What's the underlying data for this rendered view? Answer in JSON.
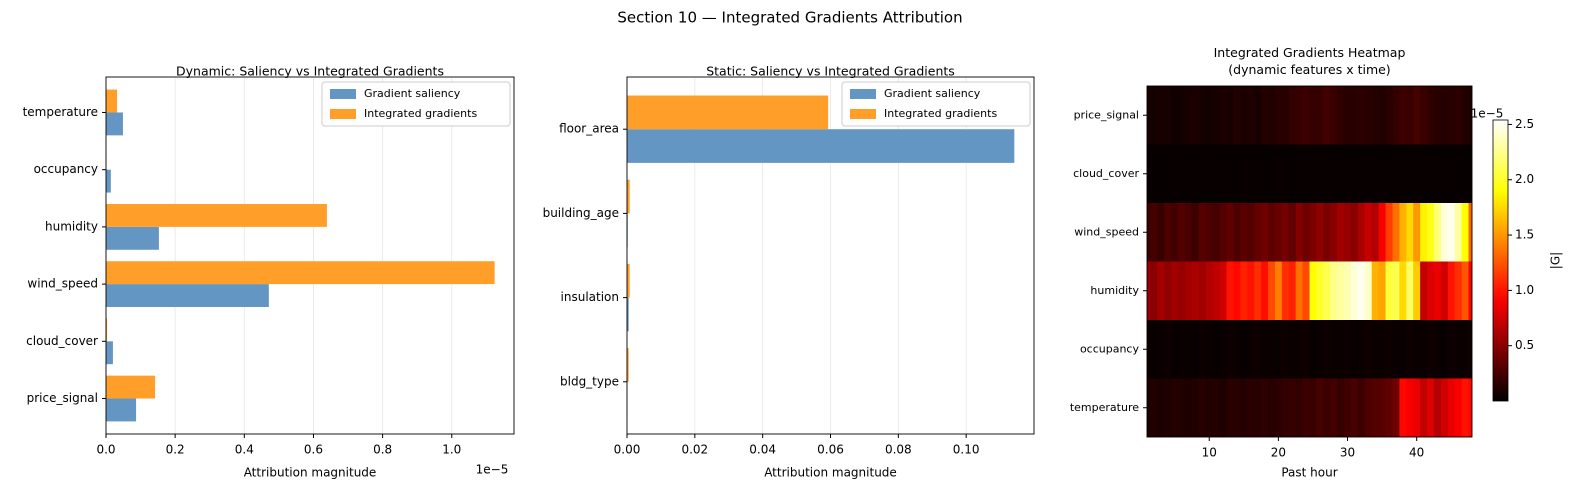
{
  "title": "Section 10 — Integrated Gradients Attribution",
  "chart_data": [
    {
      "type": "hbar",
      "title": "Dynamic: Saliency vs Integrated Gradients",
      "xlabel": "Attribution magnitude",
      "offset_text": "1e−5",
      "categories": [
        "price_signal",
        "cloud_cover",
        "wind_speed",
        "humidity",
        "occupancy",
        "temperature"
      ],
      "series": [
        {
          "name": "Gradient saliency",
          "color": "#6496c3",
          "values": [
            0.087,
            0.02,
            0.471,
            0.153,
            0.014,
            0.049
          ]
        },
        {
          "name": "Integrated gradients",
          "color": "#ff9f2a",
          "values": [
            0.142,
            0.003,
            1.124,
            0.639,
            0.001,
            0.032
          ]
        }
      ],
      "xlim": [
        0,
        1.18
      ],
      "xticks": [
        {
          "value": 0,
          "label": "0.0"
        },
        0.2,
        0.4,
        0.6,
        0.8,
        {
          "value": 1,
          "label": "1.0"
        }
      ],
      "grid": true,
      "legend": "upper right"
    },
    {
      "type": "hbar",
      "title": "Static: Saliency vs Integrated Gradients",
      "xlabel": "Attribution magnitude",
      "categories": [
        "bldg_type",
        "insulation",
        "building_age",
        "floor_area"
      ],
      "series": [
        {
          "name": "Gradient saliency",
          "color": "#6496c3",
          "values": [
            0.0001,
            0.0005,
            0.0002,
            0.1142
          ]
        },
        {
          "name": "Integrated gradients",
          "color": "#ff9f2a",
          "values": [
            0.0005,
            0.0008,
            0.0008,
            0.0593
          ]
        }
      ],
      "xlim": [
        0,
        0.12
      ],
      "xticks": [
        {
          "value": 0,
          "label": "0.00"
        },
        0.02,
        0.04,
        0.06,
        0.08,
        {
          "value": 0.1,
          "label": "0.10"
        }
      ],
      "grid": true,
      "legend": "upper right"
    },
    {
      "type": "heatmap",
      "title": "Integrated Gradients Heatmap\n(dynamic features x time)",
      "xlabel": "Past hour",
      "categories": [
        "price_signal",
        "cloud_cover",
        "wind_speed",
        "humidity",
        "occupancy",
        "temperature"
      ],
      "x": [
        1,
        2,
        3,
        4,
        5,
        6,
        7,
        8,
        9,
        10,
        11,
        12,
        13,
        14,
        15,
        16,
        17,
        18,
        19,
        20,
        21,
        22,
        23,
        24,
        25,
        26,
        27,
        28,
        29,
        30,
        31,
        32,
        33,
        34,
        35,
        36,
        37,
        38,
        39,
        40,
        41,
        42,
        43,
        44,
        45,
        46,
        47,
        48
      ],
      "values": [
        [
          0.08,
          0.07,
          0.09,
          0.08,
          0.06,
          0.07,
          0.09,
          0.1,
          0.08,
          0.07,
          0.08,
          0.1,
          0.09,
          0.12,
          0.1,
          0.11,
          0.09,
          0.13,
          0.12,
          0.15,
          0.14,
          0.18,
          0.2,
          0.22,
          0.19,
          0.2,
          0.24,
          0.21,
          0.17,
          0.15,
          0.14,
          0.16,
          0.15,
          0.13,
          0.12,
          0.15,
          0.18,
          0.22,
          0.2,
          0.25,
          0.21,
          0.17,
          0.15,
          0.13,
          0.14,
          0.16,
          0.12,
          0.1
        ],
        [
          0.02,
          0.03,
          0.02,
          0.02,
          0.03,
          0.02,
          0.03,
          0.02,
          0.02,
          0.03,
          0.02,
          0.03,
          0.02,
          0.02,
          0.03,
          0.02,
          0.03,
          0.02,
          0.02,
          0.03,
          0.03,
          0.02,
          0.03,
          0.02,
          0.03,
          0.03,
          0.02,
          0.03,
          0.02,
          0.03,
          0.02,
          0.03,
          0.03,
          0.02,
          0.03,
          0.02,
          0.03,
          0.03,
          0.02,
          0.03,
          0.02,
          0.03,
          0.02,
          0.03,
          0.02,
          0.03,
          0.02,
          0.03
        ],
        [
          0.22,
          0.25,
          0.2,
          0.28,
          0.24,
          0.3,
          0.26,
          0.22,
          0.32,
          0.28,
          0.25,
          0.3,
          0.35,
          0.28,
          0.33,
          0.3,
          0.36,
          0.4,
          0.34,
          0.38,
          0.42,
          0.35,
          0.48,
          0.4,
          0.45,
          0.52,
          0.44,
          0.5,
          0.58,
          0.55,
          0.5,
          0.62,
          0.72,
          0.65,
          0.9,
          1.15,
          1.35,
          1.6,
          1.75,
          1.5,
          1.85,
          1.95,
          2.2,
          2.45,
          2.5,
          2.3,
          1.9,
          1.3
        ],
        [
          0.55,
          0.5,
          0.6,
          0.52,
          0.58,
          0.55,
          0.6,
          0.62,
          0.58,
          0.65,
          0.7,
          0.75,
          1.0,
          0.95,
          1.05,
          1.0,
          1.1,
          0.98,
          1.2,
          1.4,
          1.1,
          1.05,
          1.35,
          1.2,
          1.9,
          2.0,
          2.1,
          2.25,
          2.3,
          2.35,
          2.45,
          2.5,
          2.4,
          1.6,
          1.55,
          2.05,
          2.1,
          1.75,
          2.15,
          1.7,
          0.7,
          0.8,
          0.85,
          0.75,
          1.0,
          1.1,
          1.25,
          0.9
        ],
        [
          0.04,
          0.03,
          0.04,
          0.05,
          0.03,
          0.04,
          0.04,
          0.03,
          0.05,
          0.04,
          0.03,
          0.04,
          0.05,
          0.04,
          0.03,
          0.04,
          0.05,
          0.04,
          0.04,
          0.03,
          0.05,
          0.04,
          0.04,
          0.05,
          0.03,
          0.04,
          0.05,
          0.04,
          0.04,
          0.05,
          0.03,
          0.04,
          0.05,
          0.04,
          0.04,
          0.05,
          0.04,
          0.03,
          0.05,
          0.04,
          0.04,
          0.05,
          0.04,
          0.03,
          0.05,
          0.04,
          0.04,
          0.05
        ],
        [
          0.1,
          0.12,
          0.1,
          0.11,
          0.13,
          0.12,
          0.1,
          0.12,
          0.14,
          0.12,
          0.13,
          0.11,
          0.15,
          0.14,
          0.13,
          0.16,
          0.15,
          0.17,
          0.14,
          0.16,
          0.18,
          0.2,
          0.17,
          0.22,
          0.2,
          0.25,
          0.22,
          0.24,
          0.2,
          0.23,
          0.26,
          0.22,
          0.28,
          0.3,
          0.32,
          0.35,
          0.4,
          0.95,
          0.9,
          0.85,
          0.7,
          0.8,
          0.65,
          0.75,
          0.85,
          0.9,
          1.0,
          0.95
        ]
      ],
      "xlim": [
        1,
        48
      ],
      "xticks": [
        10,
        20,
        30,
        40
      ],
      "colorbar": {
        "label": "|G|",
        "colormap": "hot",
        "lim": [
          0,
          2.54
        ],
        "offset_text": "1e−5",
        "ticks": [
          0.5,
          {
            "value": 1,
            "label": "1.0"
          },
          1.5,
          {
            "value": 2,
            "label": "2.0"
          },
          2.5
        ]
      }
    }
  ]
}
